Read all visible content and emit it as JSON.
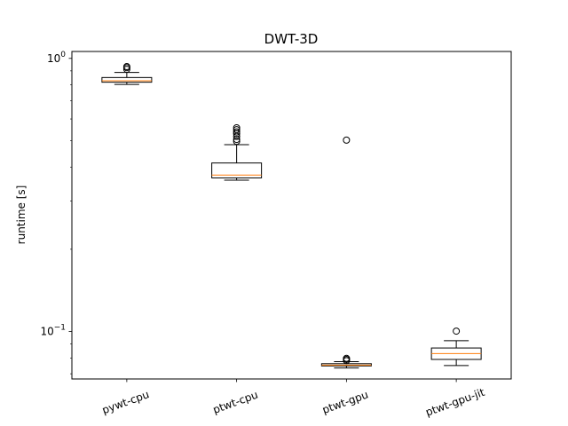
{
  "chart_data": {
    "type": "box",
    "title": "DWT-3D",
    "xlabel": "",
    "ylabel": "runtime [s]",
    "yscale": "log",
    "ylim": [
      0.067,
      1.06
    ],
    "y_ticks": [
      {
        "value": 1.0,
        "base": "10",
        "exp": "0"
      },
      {
        "value": 0.1,
        "base": "10",
        "exp": "−1"
      }
    ],
    "grid": false,
    "legend": "none",
    "categories": [
      "pywt-cpu",
      "ptwt-cpu",
      "ptwt-gpu",
      "ptwt-gpu-jit"
    ],
    "tick_rotation_deg": -20,
    "boxes": [
      {
        "category": "pywt-cpu",
        "whisker_low": 0.803,
        "q1": 0.818,
        "median": 0.828,
        "q3": 0.851,
        "whisker_high": 0.888,
        "outliers": [
          0.912,
          0.925,
          0.933
        ]
      },
      {
        "category": "ptwt-cpu",
        "whisker_low": 0.358,
        "q1": 0.365,
        "median": 0.374,
        "q3": 0.414,
        "whisker_high": 0.483,
        "outliers": [
          0.497,
          0.505,
          0.518,
          0.53,
          0.538,
          0.548,
          0.557
        ]
      },
      {
        "category": "ptwt-gpu",
        "whisker_low": 0.0735,
        "q1": 0.0748,
        "median": 0.0753,
        "q3": 0.0762,
        "whisker_high": 0.0775,
        "outliers": [
          0.0782,
          0.079,
          0.0797,
          0.502
        ]
      },
      {
        "category": "ptwt-gpu-jit",
        "whisker_low": 0.075,
        "q1": 0.079,
        "median": 0.083,
        "q3": 0.087,
        "whisker_high": 0.0925,
        "outliers": [
          0.1003
        ]
      }
    ],
    "colors": {
      "box": "#000000",
      "median": "#ff7f0e",
      "background": "#ffffff"
    }
  }
}
